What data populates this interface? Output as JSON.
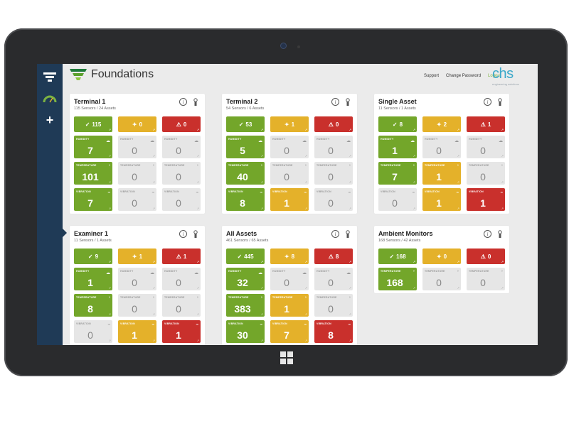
{
  "app": {
    "brand_title": "Foundations",
    "links": {
      "support": "Support",
      "change_password": "Change Password",
      "logout": "Logout"
    },
    "partner_logo": {
      "text": "chs",
      "subtext": "engineering solutions"
    }
  },
  "colors": {
    "green": "#73a62a",
    "yellow": "#e4b12a",
    "red": "#c9302c",
    "gray": "#e6e6e6",
    "sidebar": "#1f3a56",
    "accent": "#3ba8c9"
  },
  "sidebar": {
    "plus": "+"
  },
  "cards": [
    {
      "title": "Terminal 1",
      "subtitle": "115 Sensors / 24 Assets",
      "status": {
        "ok": "115",
        "warn": "0",
        "alarm": "0"
      },
      "metrics": [
        [
          {
            "label": "HUMIDITY",
            "value": "7",
            "state": "green"
          },
          {
            "label": "HUMIDITY",
            "value": "0",
            "state": "gray"
          },
          {
            "label": "HUMIDITY",
            "value": "0",
            "state": "gray"
          }
        ],
        [
          {
            "label": "TEMPERATURE",
            "value": "101",
            "state": "green"
          },
          {
            "label": "TEMPERATURE",
            "value": "0",
            "state": "gray"
          },
          {
            "label": "TEMPERATURE",
            "value": "0",
            "state": "gray"
          }
        ],
        [
          {
            "label": "VIBRATION",
            "value": "7",
            "state": "green"
          },
          {
            "label": "VIBRATION",
            "value": "0",
            "state": "gray"
          },
          {
            "label": "VIBRATION",
            "value": "0",
            "state": "gray"
          }
        ]
      ]
    },
    {
      "title": "Terminal 2",
      "subtitle": "54 Sensors / 6 Assets",
      "status": {
        "ok": "53",
        "warn": "1",
        "alarm": "0"
      },
      "metrics": [
        [
          {
            "label": "HUMIDITY",
            "value": "5",
            "state": "green"
          },
          {
            "label": "HUMIDITY",
            "value": "0",
            "state": "gray"
          },
          {
            "label": "HUMIDITY",
            "value": "0",
            "state": "gray"
          }
        ],
        [
          {
            "label": "TEMPERATURE",
            "value": "40",
            "state": "green"
          },
          {
            "label": "TEMPERATURE",
            "value": "0",
            "state": "gray"
          },
          {
            "label": "TEMPERATURE",
            "value": "0",
            "state": "gray"
          }
        ],
        [
          {
            "label": "VIBRATION",
            "value": "8",
            "state": "green"
          },
          {
            "label": "VIBRATION",
            "value": "1",
            "state": "yellow"
          },
          {
            "label": "VIBRATION",
            "value": "0",
            "state": "gray"
          }
        ]
      ]
    },
    {
      "title": "Single Asset",
      "subtitle": "11 Sensors / 1 Assets",
      "status": {
        "ok": "8",
        "warn": "2",
        "alarm": "1"
      },
      "metrics": [
        [
          {
            "label": "HUMIDITY",
            "value": "1",
            "state": "green"
          },
          {
            "label": "HUMIDITY",
            "value": "0",
            "state": "gray"
          },
          {
            "label": "HUMIDITY",
            "value": "0",
            "state": "gray"
          }
        ],
        [
          {
            "label": "TEMPERATURE",
            "value": "7",
            "state": "green"
          },
          {
            "label": "TEMPERATURE",
            "value": "1",
            "state": "yellow"
          },
          {
            "label": "TEMPERATURE",
            "value": "0",
            "state": "gray"
          }
        ],
        [
          {
            "label": "VIBRATION",
            "value": "0",
            "state": "gray"
          },
          {
            "label": "VIBRATION",
            "value": "1",
            "state": "yellow"
          },
          {
            "label": "VIBRATION",
            "value": "1",
            "state": "red"
          }
        ]
      ]
    },
    {
      "title": "Examiner 1",
      "subtitle": "11 Sensors / 1 Assets",
      "status": {
        "ok": "9",
        "warn": "1",
        "alarm": "1"
      },
      "metrics": [
        [
          {
            "label": "HUMIDITY",
            "value": "1",
            "state": "green"
          },
          {
            "label": "HUMIDITY",
            "value": "0",
            "state": "gray"
          },
          {
            "label": "HUMIDITY",
            "value": "0",
            "state": "gray"
          }
        ],
        [
          {
            "label": "TEMPERATURE",
            "value": "8",
            "state": "green"
          },
          {
            "label": "TEMPERATURE",
            "value": "0",
            "state": "gray"
          },
          {
            "label": "TEMPERATURE",
            "value": "0",
            "state": "gray"
          }
        ],
        [
          {
            "label": "VIBRATION",
            "value": "0",
            "state": "gray"
          },
          {
            "label": "VIBRATION",
            "value": "1",
            "state": "yellow"
          },
          {
            "label": "VIBRATION",
            "value": "1",
            "state": "red"
          }
        ]
      ]
    },
    {
      "title": "All Assets",
      "subtitle": "461 Sensors / 65 Assets",
      "status": {
        "ok": "445",
        "warn": "8",
        "alarm": "8"
      },
      "metrics": [
        [
          {
            "label": "HUMIDITY",
            "value": "32",
            "state": "green"
          },
          {
            "label": "HUMIDITY",
            "value": "0",
            "state": "gray"
          },
          {
            "label": "HUMIDITY",
            "value": "0",
            "state": "gray"
          }
        ],
        [
          {
            "label": "TEMPERATURE",
            "value": "383",
            "state": "green"
          },
          {
            "label": "TEMPERATURE",
            "value": "1",
            "state": "yellow"
          },
          {
            "label": "TEMPERATURE",
            "value": "0",
            "state": "gray"
          }
        ],
        [
          {
            "label": "VIBRATION",
            "value": "30",
            "state": "green"
          },
          {
            "label": "VIBRATION",
            "value": "7",
            "state": "yellow"
          },
          {
            "label": "VIBRATION",
            "value": "8",
            "state": "red"
          }
        ]
      ]
    },
    {
      "title": "Ambient Monitors",
      "subtitle": "168 Sensors / 42 Assets",
      "status": {
        "ok": "168",
        "warn": "0",
        "alarm": "0"
      },
      "metrics": [
        [
          {
            "label": "TEMPERATURE",
            "value": "168",
            "state": "green"
          },
          {
            "label": "TEMPERATURE",
            "value": "0",
            "state": "gray"
          },
          {
            "label": "TEMPERATURE",
            "value": "0",
            "state": "gray"
          }
        ]
      ]
    }
  ]
}
